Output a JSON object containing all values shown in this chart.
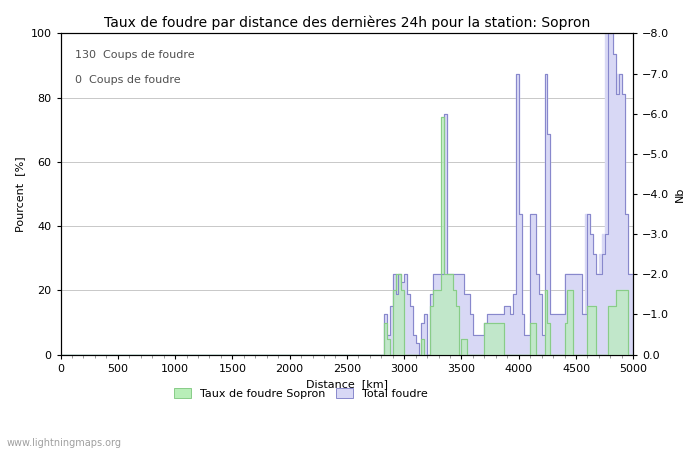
{
  "title": "Taux de foudre par distance des dernières 24h pour la station: Sopron",
  "xlabel": "Distance  [km]",
  "ylabel_left": "Pourcent  [%]",
  "ylabel_right": "Nb",
  "annotation_line1": "130  Coups de foudre",
  "annotation_line2": "0  Coups de foudre",
  "legend_label1": "Taux de foudre Sopron",
  "legend_label2": "Total foudre",
  "watermark": "www.lightningmaps.org",
  "xlim": [
    0,
    5000
  ],
  "ylim_left": [
    0,
    100
  ],
  "ylim_right": [
    0,
    8.0
  ],
  "xticks": [
    0,
    500,
    1000,
    1500,
    2000,
    2500,
    3000,
    3500,
    4000,
    4500,
    5000
  ],
  "yticks_left": [
    0,
    20,
    40,
    60,
    80,
    100
  ],
  "yticks_right": [
    0.0,
    1.0,
    2.0,
    3.0,
    4.0,
    5.0,
    6.0,
    7.0,
    8.0
  ],
  "color_total_fill": "#d8d8f5",
  "color_total_line": "#8888cc",
  "color_sopron_fill": "#b8eeb8",
  "color_sopron_line": "#88cc88",
  "background_color": "#ffffff",
  "grid_color": "#c8c8c8",
  "title_fontsize": 10,
  "label_fontsize": 8,
  "tick_fontsize": 8,
  "annotation_fontsize": 8,
  "bin_size": 25,
  "total_spikes": [
    [
      2825,
      1.0
    ],
    [
      2850,
      0.5
    ],
    [
      2875,
      1.2
    ],
    [
      2900,
      2.0
    ],
    [
      2925,
      1.5
    ],
    [
      2950,
      2.0
    ],
    [
      2975,
      1.8
    ],
    [
      3000,
      2.0
    ],
    [
      3025,
      1.5
    ],
    [
      3050,
      1.2
    ],
    [
      3075,
      0.5
    ],
    [
      3100,
      0.3
    ],
    [
      3150,
      0.8
    ],
    [
      3175,
      1.0
    ],
    [
      3225,
      1.5
    ],
    [
      3250,
      2.0
    ],
    [
      3275,
      2.0
    ],
    [
      3300,
      2.0
    ],
    [
      3325,
      2.0
    ],
    [
      3350,
      6.0
    ],
    [
      3375,
      2.0
    ],
    [
      3400,
      2.0
    ],
    [
      3425,
      2.0
    ],
    [
      3450,
      2.0
    ],
    [
      3475,
      2.0
    ],
    [
      3500,
      2.0
    ],
    [
      3525,
      1.5
    ],
    [
      3550,
      1.5
    ],
    [
      3575,
      1.0
    ],
    [
      3600,
      0.5
    ],
    [
      3625,
      0.5
    ],
    [
      3650,
      0.5
    ],
    [
      3675,
      0.5
    ],
    [
      3700,
      0.8
    ],
    [
      3725,
      1.0
    ],
    [
      3750,
      1.0
    ],
    [
      3775,
      1.0
    ],
    [
      3800,
      1.0
    ],
    [
      3825,
      1.0
    ],
    [
      3850,
      1.0
    ],
    [
      3875,
      1.2
    ],
    [
      3900,
      1.2
    ],
    [
      3925,
      1.0
    ],
    [
      3950,
      1.5
    ],
    [
      3975,
      7.0
    ],
    [
      4000,
      3.5
    ],
    [
      4025,
      1.0
    ],
    [
      4050,
      0.5
    ],
    [
      4075,
      0.5
    ],
    [
      4100,
      3.5
    ],
    [
      4125,
      3.5
    ],
    [
      4150,
      2.0
    ],
    [
      4175,
      1.5
    ],
    [
      4200,
      0.5
    ],
    [
      4225,
      7.0
    ],
    [
      4250,
      5.5
    ],
    [
      4275,
      1.0
    ],
    [
      4300,
      1.0
    ],
    [
      4325,
      1.0
    ],
    [
      4350,
      1.0
    ],
    [
      4375,
      1.0
    ],
    [
      4400,
      2.0
    ],
    [
      4425,
      2.0
    ],
    [
      4450,
      2.0
    ],
    [
      4475,
      2.0
    ],
    [
      4500,
      2.0
    ],
    [
      4525,
      2.0
    ],
    [
      4550,
      1.0
    ],
    [
      4575,
      1.0
    ],
    [
      4600,
      3.5
    ],
    [
      4625,
      3.0
    ],
    [
      4650,
      2.5
    ],
    [
      4675,
      2.0
    ],
    [
      4700,
      2.0
    ],
    [
      4725,
      2.5
    ],
    [
      4750,
      3.0
    ],
    [
      4775,
      8.0
    ],
    [
      4800,
      8.0
    ],
    [
      4825,
      7.5
    ],
    [
      4850,
      6.5
    ],
    [
      4875,
      7.0
    ],
    [
      4900,
      6.5
    ],
    [
      4925,
      3.5
    ],
    [
      4950,
      2.0
    ],
    [
      4975,
      2.0
    ]
  ],
  "sopron_spikes": [
    [
      2825,
      10.0
    ],
    [
      2850,
      5.0
    ],
    [
      2900,
      20.0
    ],
    [
      2925,
      25.0
    ],
    [
      2950,
      25.0
    ],
    [
      2975,
      20.0
    ],
    [
      3150,
      5.0
    ],
    [
      3225,
      15.0
    ],
    [
      3250,
      20.0
    ],
    [
      3275,
      20.0
    ],
    [
      3300,
      20.0
    ],
    [
      3325,
      74.0
    ],
    [
      3350,
      25.0
    ],
    [
      3375,
      25.0
    ],
    [
      3400,
      25.0
    ],
    [
      3425,
      20.0
    ],
    [
      3450,
      15.0
    ],
    [
      3500,
      5.0
    ],
    [
      3525,
      5.0
    ],
    [
      3700,
      10.0
    ],
    [
      3725,
      10.0
    ],
    [
      3750,
      10.0
    ],
    [
      3775,
      10.0
    ],
    [
      3800,
      10.0
    ],
    [
      3825,
      10.0
    ],
    [
      3850,
      10.0
    ],
    [
      4100,
      10.0
    ],
    [
      4125,
      10.0
    ],
    [
      4225,
      20.0
    ],
    [
      4250,
      10.0
    ],
    [
      4400,
      10.0
    ],
    [
      4425,
      20.0
    ],
    [
      4450,
      20.0
    ],
    [
      4600,
      15.0
    ],
    [
      4625,
      15.0
    ],
    [
      4650,
      15.0
    ],
    [
      4775,
      15.0
    ],
    [
      4800,
      15.0
    ],
    [
      4825,
      15.0
    ],
    [
      4850,
      20.0
    ],
    [
      4875,
      20.0
    ],
    [
      4900,
      20.0
    ],
    [
      4925,
      20.0
    ]
  ],
  "total_fill_start": 4400
}
